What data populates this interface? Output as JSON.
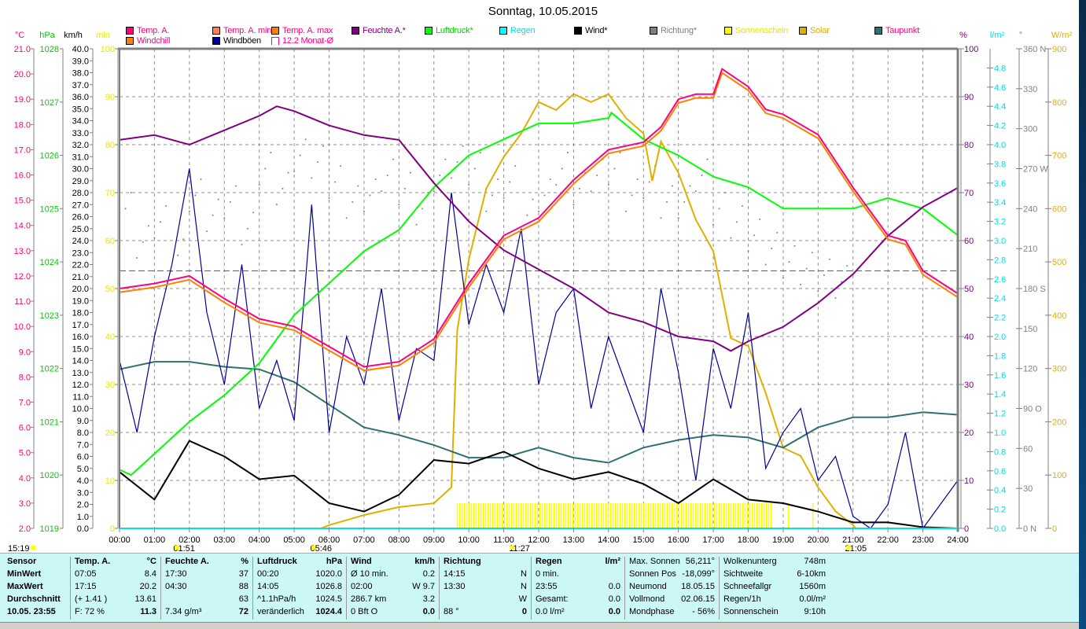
{
  "title": "Sonntag, 10.05.2015",
  "legend": [
    {
      "label": "Temp. A.",
      "color": "#ff0080",
      "text": "#ff0080"
    },
    {
      "label": "Temp. A. min",
      "color": "#ff8050",
      "text": "#ff0080"
    },
    {
      "label": "Temp. A. max",
      "color": "#ff8000",
      "text": "#ff0080"
    },
    {
      "label": "Feuchte A.*",
      "color": "#800080",
      "text": "#800080"
    },
    {
      "label": "Luftdruck*",
      "color": "#00ff00",
      "text": "#00cc00"
    },
    {
      "label": "Regen",
      "color": "#00ffff",
      "text": "#00e0e0"
    },
    {
      "label": "Wind*",
      "color": "#000000",
      "text": "#000000"
    },
    {
      "label": "Richtung*",
      "color": "#808080",
      "text": "#808080"
    },
    {
      "label": "Sonnenschein",
      "color": "#ffff00",
      "text": "#e8e800"
    },
    {
      "label": "Solar",
      "color": "#e0b000",
      "text": "#e0b000"
    },
    {
      "label": "Taupunkt",
      "color": "#307070",
      "text": "#ff0080"
    },
    {
      "label": "Windchill",
      "color": "#ff8000",
      "text": "#ff0080"
    },
    {
      "label": "Windböen",
      "color": "#000099",
      "text": "#000000"
    },
    {
      "label": "12.2 Monat-Ø",
      "color": "outline",
      "text": "#ff0080"
    }
  ],
  "chart_data": {
    "type": "line",
    "title": "Sonntag, 10.05.2015",
    "xlabel": "",
    "x_ticks": [
      "00:00",
      "01:00",
      "02:00",
      "03:00",
      "04:00",
      "05:00",
      "06:00",
      "07:00",
      "08:00",
      "09:00",
      "10:00",
      "11:00",
      "12:00",
      "13:00",
      "14:00",
      "15:00",
      "16:00",
      "17:00",
      "18:00",
      "19:00",
      "20:00",
      "21:00",
      "22:00",
      "23:00",
      "24:00"
    ],
    "xlim": [
      0,
      24
    ],
    "axes": {
      "C": {
        "unit": "°C",
        "min": 2,
        "max": 21,
        "step": 1,
        "dec": 1,
        "color": "#ff0080"
      },
      "hPa": {
        "unit": "hPa",
        "min": 1019,
        "max": 1028,
        "step": 1,
        "dec": 0,
        "color": "#00cc00"
      },
      "kmh": {
        "unit": "km/h",
        "min": 0,
        "max": 40,
        "step": 1,
        "dec": 1,
        "color": "#000000"
      },
      "min": {
        "unit": "min",
        "min": 0,
        "max": 100,
        "step": 10,
        "dec": 0,
        "color": "#e8e800"
      },
      "pct": {
        "unit": "%",
        "min": 0,
        "max": 100,
        "step": 10,
        "dec": 0,
        "color": "#800080"
      },
      "rain": {
        "unit": "l/m²",
        "min": 0,
        "max": 5,
        "step": 0.2,
        "dec": 1,
        "color": "#00e0e0"
      },
      "deg": {
        "unit": "°",
        "min": 0,
        "max": 360,
        "labels": [
          "0 N",
          "30",
          "60",
          "90 O",
          "120",
          "150",
          "180 S",
          "210",
          "240",
          "270 W",
          "300",
          "330",
          "360 N"
        ],
        "color": "#808080"
      },
      "wm2": {
        "unit": "W/m²",
        "min": 0,
        "max": 900,
        "step": 100,
        "dec": 0,
        "color": "#e0b000"
      }
    },
    "month_avg_temp": 12.2,
    "series": [
      {
        "name": "Temp. A.",
        "axis": "C",
        "color": "#ff0080",
        "x": [
          0,
          1,
          2,
          3,
          4,
          5,
          6,
          7,
          8,
          9,
          9.5,
          10,
          11,
          12,
          13,
          14,
          15,
          15.5,
          16,
          16.5,
          17,
          17.25,
          18,
          18.5,
          19,
          20,
          21,
          22,
          22.5,
          23,
          24
        ],
        "values": [
          11.5,
          11.7,
          12.0,
          11.1,
          10.3,
          10.0,
          9.2,
          8.4,
          8.6,
          9.5,
          10.6,
          11.7,
          13.6,
          14.3,
          15.8,
          17.0,
          17.3,
          17.9,
          19.0,
          19.2,
          19.2,
          20.2,
          19.5,
          18.6,
          18.4,
          17.6,
          15.5,
          13.6,
          13.4,
          12.2,
          11.3
        ]
      },
      {
        "name": "Windchill",
        "axis": "C",
        "color": "#ff8000",
        "offset": -0.15,
        "ref": "Temp. A."
      },
      {
        "name": "Feuchte A.*",
        "axis": "pct",
        "color": "#800080",
        "x": [
          0,
          1,
          2,
          3,
          4,
          4.5,
          5,
          6,
          7,
          8,
          9,
          10,
          11,
          12,
          13,
          14,
          15,
          16,
          17,
          17.5,
          18,
          19,
          20,
          21,
          22,
          23,
          24
        ],
        "values": [
          81,
          82,
          80,
          83,
          86,
          88,
          87,
          84,
          82,
          81,
          72,
          64,
          58,
          54,
          50,
          45,
          43,
          40,
          39,
          37,
          39,
          42,
          47,
          53,
          61,
          67,
          71
        ]
      },
      {
        "name": "Luftdruck*",
        "axis": "hPa",
        "color": "#00ff00",
        "x": [
          0,
          0.33,
          1,
          2,
          3,
          4,
          5,
          6,
          7,
          8,
          9,
          10,
          11,
          12,
          13,
          14,
          14.08,
          15,
          16,
          17,
          18,
          19,
          20,
          21,
          22,
          23,
          24
        ],
        "values": [
          1020.1,
          1020.0,
          1020.4,
          1021.0,
          1021.5,
          1022.1,
          1023.0,
          1023.6,
          1024.2,
          1024.6,
          1025.4,
          1026.0,
          1026.3,
          1026.6,
          1026.6,
          1026.7,
          1026.8,
          1026.3,
          1026.0,
          1025.6,
          1025.4,
          1025.0,
          1025.0,
          1025.0,
          1025.2,
          1025.0,
          1024.5
        ]
      },
      {
        "name": "Solar",
        "axis": "wm2",
        "color": "#e0b000",
        "x": [
          0,
          5.77,
          6,
          7,
          8,
          9,
          9.5,
          9.67,
          10,
          10.5,
          11,
          11.5,
          12,
          12.5,
          13,
          13.5,
          14,
          14.5,
          15,
          15.25,
          15.5,
          16,
          16.5,
          17,
          17.5,
          18,
          18.5,
          19,
          19.5,
          20,
          20.5,
          21,
          21.08,
          24
        ],
        "values": [
          0,
          0,
          6,
          25,
          40,
          47,
          77,
          372,
          505,
          638,
          697,
          741,
          800,
          785,
          815,
          800,
          815,
          770,
          741,
          652,
          726,
          667,
          579,
          520,
          357,
          342,
          254,
          151,
          136,
          77,
          32,
          6,
          0,
          0
        ]
      },
      {
        "name": "Taupunkt",
        "axis": "C",
        "color": "#307070",
        "x": [
          0,
          1,
          2,
          3,
          4,
          5,
          6,
          7,
          8,
          9,
          10,
          11,
          12,
          13,
          14,
          15,
          16,
          17,
          18,
          19,
          20,
          21,
          22,
          23,
          24
        ],
        "values": [
          8.3,
          8.6,
          8.6,
          8.4,
          8.3,
          7.8,
          6.9,
          6.0,
          5.7,
          5.3,
          4.8,
          4.8,
          5.2,
          4.8,
          4.6,
          5.2,
          5.5,
          5.7,
          5.6,
          5.2,
          6.0,
          6.4,
          6.4,
          6.6,
          6.5
        ]
      },
      {
        "name": "Wind*",
        "axis": "kmh",
        "color": "#000000",
        "x": [
          0,
          1,
          2,
          3,
          4,
          5,
          6,
          7,
          8,
          9,
          10,
          11,
          12,
          13,
          14,
          15,
          16,
          17,
          18,
          19,
          20,
          21,
          22,
          23,
          24
        ],
        "values": [
          4.7,
          2.4,
          7.3,
          6.0,
          4.1,
          4.4,
          2.1,
          1.4,
          2.8,
          5.7,
          5.4,
          6.4,
          5.0,
          4.1,
          4.7,
          3.7,
          2.1,
          4.1,
          2.4,
          2.1,
          1.4,
          0.5,
          0.5,
          0.1,
          0
        ]
      },
      {
        "name": "Windböen",
        "axis": "kmh",
        "color": "#000099",
        "x": [
          0,
          0.5,
          1,
          1.5,
          2,
          2.5,
          3,
          3.5,
          4,
          4.5,
          5,
          5.5,
          6,
          6.5,
          7,
          7.5,
          8,
          8.5,
          9,
          9.5,
          10,
          10.5,
          11,
          11.5,
          12,
          12.5,
          13,
          13.5,
          14,
          14.5,
          15,
          15.5,
          16,
          16.5,
          17,
          17.5,
          18,
          18.5,
          19,
          19.5,
          20,
          20.5,
          21,
          21.5,
          22,
          22.5,
          23,
          23.5,
          24
        ],
        "values": [
          14,
          8,
          16,
          22,
          30,
          18,
          12,
          22,
          10,
          14,
          9,
          27,
          8,
          16,
          12,
          20,
          9,
          15,
          14,
          28,
          17,
          22,
          18,
          25,
          12,
          18,
          20,
          10,
          16,
          12,
          8,
          20,
          13,
          4,
          15,
          10,
          18,
          5,
          8,
          10,
          4,
          6,
          1,
          0,
          2,
          8,
          0,
          2,
          4
        ]
      }
    ],
    "direction": {
      "axis": "deg",
      "color": "#808080",
      "x": [
        0,
        0.5,
        1,
        1.5,
        2,
        2.5,
        3,
        3.5,
        4,
        4.5,
        5,
        5.5,
        6,
        6.5,
        7,
        7.5,
        8,
        8.5,
        9,
        9.5,
        10,
        10.5,
        11,
        11.5,
        12,
        12.5,
        13,
        13.5,
        14,
        14.5,
        15,
        15.5,
        16,
        16.5,
        17,
        17.5,
        18,
        18.5,
        19,
        19.5,
        20,
        20.5
      ],
      "values": [
        240,
        215,
        230,
        205,
        250,
        235,
        245,
        225,
        270,
        255,
        280,
        275,
        260,
        245,
        250,
        265,
        255,
        240,
        265,
        275,
        270,
        250,
        260,
        235,
        250,
        270,
        255,
        265,
        270,
        250,
        260,
        245,
        245,
        265,
        240,
        230,
        220,
        210,
        200,
        195,
        190,
        185
      ]
    },
    "sunshine_intervals": [
      [
        9.67,
        18.67
      ],
      [
        19.15,
        19.2
      ],
      [
        19.85,
        19.9
      ]
    ],
    "markers": [
      {
        "label": "15:19",
        "time": -3
      },
      {
        "label": "01:51",
        "time": 1.85
      },
      {
        "label": "05:46",
        "time": 5.77
      },
      {
        "label": "11:27",
        "time": 11.45
      },
      {
        "label": "21:05",
        "time": 21.08
      }
    ]
  },
  "table": {
    "cols": [
      {
        "h": [
          "Sensor",
          ""
        ],
        "rows": [
          [
            "MinWert",
            ""
          ],
          [
            "MaxWert",
            ""
          ],
          [
            "Durchschnitt",
            ""
          ],
          [
            "10.05. 23:55",
            ""
          ]
        ]
      },
      {
        "h": [
          "Temp. A.",
          "°C"
        ],
        "rows": [
          [
            "07:05",
            "8.4"
          ],
          [
            "17:15",
            "20.2"
          ],
          [
            "(+ 1.41 )",
            "13.61"
          ],
          [
            "F: 72 %",
            "11.3"
          ]
        ]
      },
      {
        "h": [
          "Feuchte A.",
          "%"
        ],
        "rows": [
          [
            "17:30",
            "37"
          ],
          [
            "04:30",
            "88"
          ],
          [
            "",
            "63"
          ],
          [
            "7.34 g/m³",
            "72"
          ]
        ]
      },
      {
        "h": [
          "Luftdruck",
          "hPa"
        ],
        "rows": [
          [
            "00:20",
            "1020.0"
          ],
          [
            "14:05",
            "1026.8"
          ],
          [
            "^1.1hPa/h",
            "1024.5"
          ],
          [
            "veränderlich",
            "1024.4"
          ]
        ]
      },
      {
        "h": [
          "Wind",
          "km/h"
        ],
        "rows": [
          [
            "Ø 10 min.",
            "0.2"
          ],
          [
            "02:00",
            "W 9.7"
          ],
          [
            "286.7 km",
            "3.2"
          ],
          [
            "0 Bft O",
            "0.0"
          ]
        ]
      },
      {
        "h": [
          "Richtung",
          ""
        ],
        "rows": [
          [
            "14:15",
            "N"
          ],
          [
            "13:30",
            "N"
          ],
          [
            "",
            "W"
          ],
          [
            "88 °",
            "0"
          ]
        ]
      },
      {
        "h": [
          "Regen",
          "l/m²"
        ],
        "rows": [
          [
            "0 min.",
            ""
          ],
          [
            "23:55",
            "0.0"
          ],
          [
            "Gesamt:",
            "0.0"
          ],
          [
            "0.0 l/m²",
            "0.0"
          ]
        ]
      },
      {
        "h": [
          "Max. Sonnen",
          "56,211°"
        ],
        "rows": [
          [
            "Sonnen Pos",
            "-18,099°"
          ],
          [
            "Neumond",
            "18.05.15"
          ],
          [
            "Vollmond",
            "02.06.15"
          ],
          [
            "Mondphase",
            "- 56%"
          ]
        ]
      },
      {
        "h": [
          "Wolkenunterg",
          "748m"
        ],
        "rows": [
          [
            "Sichtweite",
            "6-10km"
          ],
          [
            "Schneefallgr",
            "1560m"
          ],
          [
            "Regen/1h",
            "0.0l/m²"
          ],
          [
            "Sonnenschein",
            "9:10h"
          ]
        ]
      }
    ]
  }
}
